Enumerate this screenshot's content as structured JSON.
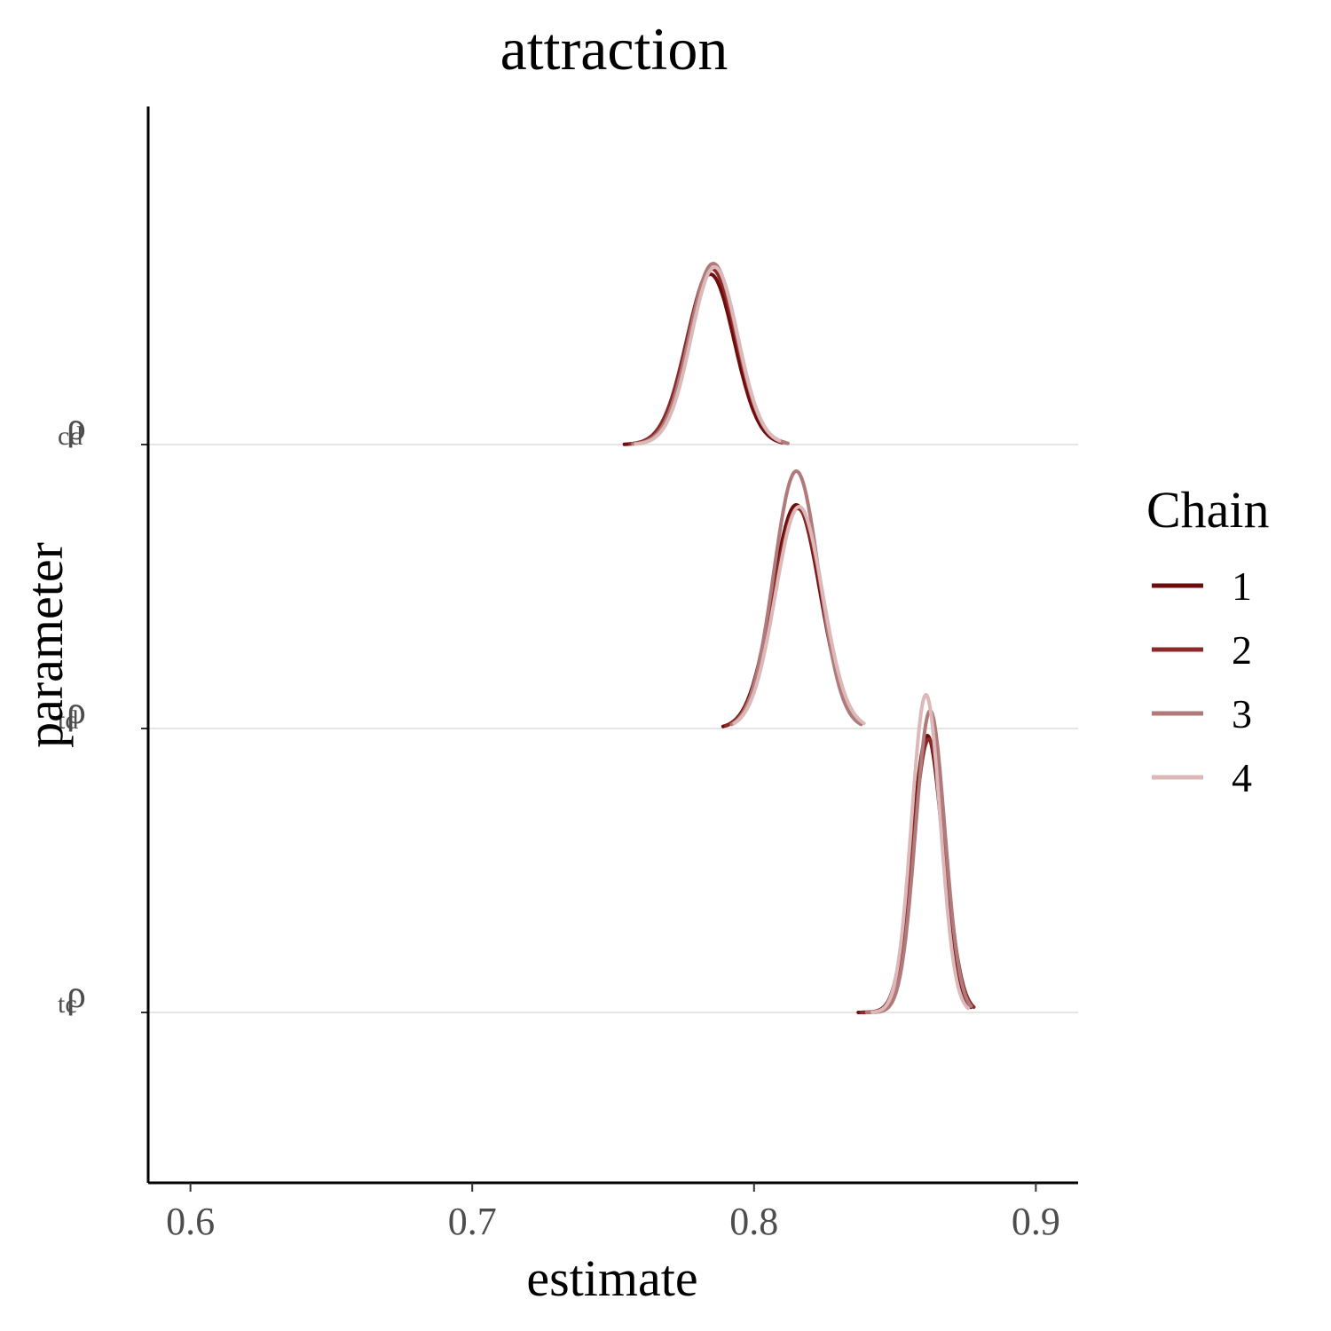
{
  "chart_data": {
    "type": "ridgeline-density",
    "title": "attraction",
    "xlabel": "estimate",
    "ylabel": "parameter",
    "xlim": [
      0.585,
      0.915
    ],
    "x_ticks": [
      0.6,
      0.7,
      0.8,
      0.9
    ],
    "x_tick_labels": [
      "0.6",
      "0.7",
      "0.8",
      "0.9"
    ],
    "grid": "horizontal",
    "legend_position": "right",
    "legend": {
      "title": "Chain",
      "entries": [
        {
          "label": "1",
          "color": "#6e0b0b"
        },
        {
          "label": "2",
          "color": "#8c2a2a"
        },
        {
          "label": "3",
          "color": "#b07a7a"
        },
        {
          "label": "4",
          "color": "#dcb8b8"
        }
      ]
    },
    "parameters": [
      {
        "name": "ρ",
        "subscript": "cd"
      },
      {
        "name": "ρ",
        "subscript": "td"
      },
      {
        "name": "ρ",
        "subscript": "tc"
      }
    ],
    "densities": [
      {
        "parameter": "cd",
        "series": [
          {
            "chain": "1",
            "mode": 0.7845,
            "sd": 0.0085,
            "peak": 0.96,
            "min": 0.754,
            "max": 0.81
          },
          {
            "chain": "2",
            "mode": 0.785,
            "sd": 0.0087,
            "peak": 0.99,
            "min": 0.756,
            "max": 0.811
          },
          {
            "chain": "3",
            "mode": 0.7855,
            "sd": 0.0084,
            "peak": 1.02,
            "min": 0.757,
            "max": 0.812
          },
          {
            "chain": "4",
            "mode": 0.786,
            "sd": 0.0083,
            "peak": 1.0,
            "min": 0.758,
            "max": 0.809
          }
        ]
      },
      {
        "parameter": "td",
        "series": [
          {
            "chain": "1",
            "mode": 0.815,
            "sd": 0.0085,
            "peak": 1.26,
            "min": 0.789,
            "max": 0.836
          },
          {
            "chain": "2",
            "mode": 0.8155,
            "sd": 0.0086,
            "peak": 1.24,
            "min": 0.79,
            "max": 0.837
          },
          {
            "chain": "3",
            "mode": 0.815,
            "sd": 0.008,
            "peak": 1.45,
            "min": 0.792,
            "max": 0.838
          },
          {
            "chain": "4",
            "mode": 0.816,
            "sd": 0.0084,
            "peak": 1.25,
            "min": 0.793,
            "max": 0.839
          }
        ]
      },
      {
        "parameter": "tc",
        "series": [
          {
            "chain": "1",
            "mode": 0.8615,
            "sd": 0.0055,
            "peak": 1.56,
            "min": 0.837,
            "max": 0.877
          },
          {
            "chain": "2",
            "mode": 0.862,
            "sd": 0.0057,
            "peak": 1.54,
            "min": 0.838,
            "max": 0.878
          },
          {
            "chain": "3",
            "mode": 0.8625,
            "sd": 0.0052,
            "peak": 1.7,
            "min": 0.84,
            "max": 0.877
          },
          {
            "chain": "4",
            "mode": 0.861,
            "sd": 0.0051,
            "peak": 1.79,
            "min": 0.842,
            "max": 0.876
          }
        ]
      }
    ]
  }
}
